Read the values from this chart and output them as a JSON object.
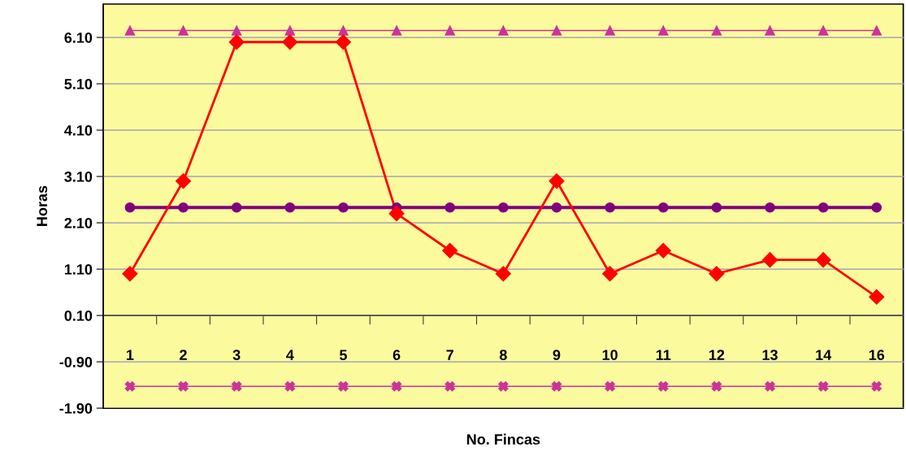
{
  "chart_data": {
    "type": "line",
    "xlabel": "No. Fincas",
    "ylabel": "Horas",
    "categories": [
      "1",
      "2",
      "3",
      "4",
      "5",
      "6",
      "7",
      "8",
      "9",
      "10",
      "11",
      "12",
      "13",
      "14",
      "16"
    ],
    "series": [
      {
        "color": "#cc3399",
        "marker": "triangle",
        "values": [
          6.25,
          6.25,
          6.25,
          6.25,
          6.25,
          6.25,
          6.25,
          6.25,
          6.25,
          6.25,
          6.25,
          6.25,
          6.25,
          6.25,
          6.25
        ]
      },
      {
        "color": "#800080",
        "marker": "circle",
        "values": [
          2.43,
          2.43,
          2.43,
          2.43,
          2.43,
          2.43,
          2.43,
          2.43,
          2.43,
          2.43,
          2.43,
          2.43,
          2.43,
          2.43,
          2.43
        ]
      },
      {
        "color": "#ff0000",
        "marker": "diamond",
        "values": [
          1.0,
          3.0,
          6.0,
          6.0,
          6.0,
          2.3,
          1.5,
          1.0,
          3.0,
          1.0,
          1.5,
          1.0,
          1.3,
          1.3,
          0.5
        ]
      },
      {
        "color": "#cc3399",
        "marker": "cross",
        "values": [
          -1.43,
          -1.43,
          -1.43,
          -1.43,
          -1.43,
          -1.43,
          -1.43,
          -1.43,
          -1.43,
          -1.43,
          -1.43,
          -1.43,
          -1.43,
          -1.43,
          -1.43
        ]
      }
    ],
    "ylim": [
      -1.9,
      6.82
    ],
    "yticks": [
      {
        "value": -1.9,
        "label": "-1.90"
      },
      {
        "value": -0.9,
        "label": "-0.90"
      },
      {
        "value": 0.1,
        "label": "0.10"
      },
      {
        "value": 1.1,
        "label": "1.10"
      },
      {
        "value": 2.1,
        "label": "2.10"
      },
      {
        "value": 3.1,
        "label": "3.10"
      },
      {
        "value": 4.1,
        "label": "4.10"
      },
      {
        "value": 5.1,
        "label": "5.10"
      },
      {
        "value": 6.1,
        "label": "6.10"
      }
    ],
    "grid": "y"
  }
}
